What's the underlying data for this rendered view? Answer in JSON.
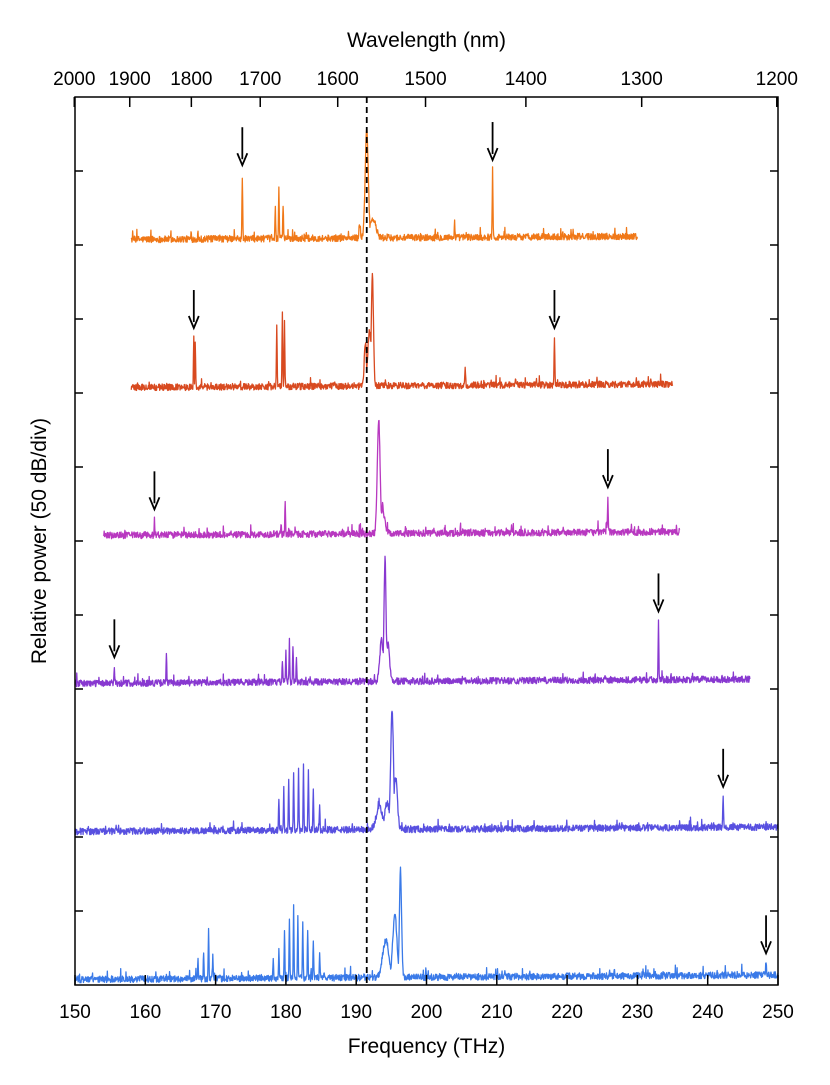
{
  "chart_data": {
    "type": "line",
    "xlabel": "Frequency (THz)",
    "ylabel": "Relative power (50 dB/div)",
    "x2label": "Wavelength (nm)",
    "xlim": [
      150,
      250
    ],
    "x_ticks": [
      150,
      160,
      170,
      180,
      190,
      200,
      210,
      220,
      230,
      240,
      250
    ],
    "x2_ticks": [
      2000,
      1900,
      1800,
      1700,
      1600,
      1500,
      1400,
      1300,
      1200
    ],
    "y_divisions": 12,
    "dashed_marker_x": 191.5,
    "series": [
      {
        "color": "#f07818",
        "x_range": [
          158.0,
          230.0
        ],
        "peaks": [
          {
            "x": 173.8,
            "h": 0.85,
            "w": 0.05,
            "arrow": true
          },
          {
            "x": 178.5,
            "h": 0.4,
            "w": 0.05
          },
          {
            "x": 179.0,
            "h": 0.7,
            "w": 0.05
          },
          {
            "x": 179.6,
            "h": 0.45,
            "w": 0.05
          },
          {
            "x": 190.5,
            "h": 0.2,
            "w": 0.1
          },
          {
            "x": 191.5,
            "h": 1.45,
            "w": 0.22
          },
          {
            "x": 192.4,
            "h": 0.25,
            "w": 0.4
          },
          {
            "x": 204.0,
            "h": 0.2,
            "w": 0.05
          },
          {
            "x": 209.4,
            "h": 0.92,
            "w": 0.05,
            "arrow": true
          }
        ]
      },
      {
        "color": "#d84a20",
        "x_range": [
          158.0,
          235.0
        ],
        "peaks": [
          {
            "x": 166.9,
            "h": 0.65,
            "w": 0.05,
            "arrow": true
          },
          {
            "x": 167.1,
            "h": 0.6,
            "w": 0.05
          },
          {
            "x": 178.7,
            "h": 0.85,
            "w": 0.05
          },
          {
            "x": 179.5,
            "h": 1.0,
            "w": 0.05
          },
          {
            "x": 179.8,
            "h": 0.85,
            "w": 0.05
          },
          {
            "x": 191.3,
            "h": 0.6,
            "w": 0.15
          },
          {
            "x": 191.9,
            "h": 0.75,
            "w": 0.25
          },
          {
            "x": 192.3,
            "h": 1.5,
            "w": 0.15
          },
          {
            "x": 205.5,
            "h": 0.2,
            "w": 0.05
          },
          {
            "x": 218.2,
            "h": 0.65,
            "w": 0.05,
            "arrow": true
          }
        ]
      },
      {
        "color": "#b838c0",
        "x_range": [
          154.0,
          236.0
        ],
        "peaks": [
          {
            "x": 161.3,
            "h": 0.2,
            "w": 0.05,
            "arrow": true
          },
          {
            "x": 179.3,
            "h": 0.15,
            "w": 0.05
          },
          {
            "x": 179.9,
            "h": 0.45,
            "w": 0.05
          },
          {
            "x": 193.2,
            "h": 1.55,
            "w": 0.2
          },
          {
            "x": 193.7,
            "h": 0.3,
            "w": 0.35
          },
          {
            "x": 225.8,
            "h": 0.5,
            "w": 0.05,
            "arrow": true
          }
        ]
      },
      {
        "color": "#8838d0",
        "x_range": [
          150.0,
          246.0
        ],
        "peaks": [
          {
            "x": 155.6,
            "h": 0.2,
            "w": 0.05,
            "arrow": true
          },
          {
            "x": 163.0,
            "h": 0.4,
            "w": 0.05
          },
          {
            "x": 179.5,
            "h": 0.3,
            "w": 0.05
          },
          {
            "x": 180.0,
            "h": 0.45,
            "w": 0.05
          },
          {
            "x": 180.5,
            "h": 0.55,
            "w": 0.05
          },
          {
            "x": 181.0,
            "h": 0.5,
            "w": 0.05
          },
          {
            "x": 181.5,
            "h": 0.35,
            "w": 0.05
          },
          {
            "x": 193.6,
            "h": 0.55,
            "w": 0.25
          },
          {
            "x": 194.1,
            "h": 1.65,
            "w": 0.15
          },
          {
            "x": 194.5,
            "h": 0.5,
            "w": 0.25
          },
          {
            "x": 233.0,
            "h": 0.82,
            "w": 0.05,
            "arrow": true
          }
        ]
      },
      {
        "color": "#5850e0",
        "x_range": [
          150.0,
          250.0
        ],
        "peaks": [
          {
            "x": 179.0,
            "h": 0.4,
            "w": 0.05
          },
          {
            "x": 179.7,
            "h": 0.55,
            "w": 0.05
          },
          {
            "x": 180.4,
            "h": 0.7,
            "w": 0.05
          },
          {
            "x": 181.1,
            "h": 0.8,
            "w": 0.05
          },
          {
            "x": 181.8,
            "h": 0.85,
            "w": 0.05
          },
          {
            "x": 182.5,
            "h": 0.85,
            "w": 0.05
          },
          {
            "x": 183.2,
            "h": 0.8,
            "w": 0.05
          },
          {
            "x": 183.9,
            "h": 0.55,
            "w": 0.05
          },
          {
            "x": 184.8,
            "h": 0.3,
            "w": 0.05
          },
          {
            "x": 193.3,
            "h": 0.3,
            "w": 0.45
          },
          {
            "x": 194.4,
            "h": 0.35,
            "w": 0.35
          },
          {
            "x": 195.1,
            "h": 1.6,
            "w": 0.2
          },
          {
            "x": 195.6,
            "h": 0.7,
            "w": 0.25
          },
          {
            "x": 242.2,
            "h": 0.45,
            "w": 0.05,
            "arrow": true
          }
        ]
      },
      {
        "color": "#3a7ae8",
        "x_range": [
          150.0,
          250.0
        ],
        "peaks": [
          {
            "x": 167.5,
            "h": 0.25,
            "w": 0.05
          },
          {
            "x": 168.3,
            "h": 0.35,
            "w": 0.05
          },
          {
            "x": 169.0,
            "h": 0.65,
            "w": 0.05
          },
          {
            "x": 169.6,
            "h": 0.3,
            "w": 0.05
          },
          {
            "x": 178.2,
            "h": 0.25,
            "w": 0.05
          },
          {
            "x": 179.0,
            "h": 0.4,
            "w": 0.05
          },
          {
            "x": 179.8,
            "h": 0.65,
            "w": 0.05
          },
          {
            "x": 180.5,
            "h": 0.8,
            "w": 0.05
          },
          {
            "x": 181.1,
            "h": 0.95,
            "w": 0.05
          },
          {
            "x": 181.7,
            "h": 0.85,
            "w": 0.05
          },
          {
            "x": 182.4,
            "h": 0.75,
            "w": 0.05
          },
          {
            "x": 183.1,
            "h": 0.65,
            "w": 0.05
          },
          {
            "x": 183.9,
            "h": 0.5,
            "w": 0.05
          },
          {
            "x": 184.8,
            "h": 0.3,
            "w": 0.05
          },
          {
            "x": 194.2,
            "h": 0.5,
            "w": 0.45
          },
          {
            "x": 195.5,
            "h": 0.85,
            "w": 0.3
          },
          {
            "x": 196.3,
            "h": 1.45,
            "w": 0.15
          },
          {
            "x": 248.3,
            "h": 0.2,
            "w": 0.05,
            "arrow": true
          }
        ]
      }
    ]
  }
}
